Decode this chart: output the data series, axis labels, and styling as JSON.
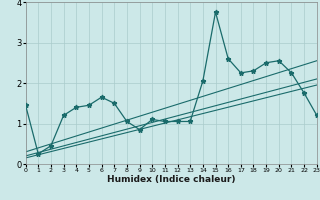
{
  "xlabel": "Humidex (Indice chaleur)",
  "background_color": "#cce8e8",
  "grid_color": "#aacccc",
  "line_color": "#1a6b6b",
  "x_data": [
    0,
    1,
    2,
    3,
    4,
    5,
    6,
    7,
    8,
    9,
    10,
    11,
    12,
    13,
    14,
    15,
    16,
    17,
    18,
    19,
    20,
    21,
    22,
    23
  ],
  "y_main": [
    1.45,
    0.25,
    0.45,
    1.2,
    1.4,
    1.45,
    1.65,
    1.5,
    1.05,
    0.85,
    1.1,
    1.05,
    1.05,
    1.05,
    2.05,
    3.75,
    2.6,
    2.25,
    2.3,
    2.5,
    2.55,
    2.25,
    1.75,
    1.2
  ],
  "ylim": [
    0,
    4.0
  ],
  "xlim": [
    0,
    23
  ],
  "yticks": [
    0,
    1,
    2,
    3,
    4
  ],
  "xticks": [
    0,
    1,
    2,
    3,
    4,
    5,
    6,
    7,
    8,
    9,
    10,
    11,
    12,
    13,
    14,
    15,
    16,
    17,
    18,
    19,
    20,
    21,
    22,
    23
  ],
  "trend1_x": [
    0,
    23
  ],
  "trend1_y": [
    0.3,
    2.55
  ],
  "trend2_x": [
    0,
    23
  ],
  "trend2_y": [
    0.2,
    2.1
  ],
  "trend3_x": [
    0,
    23
  ],
  "trend3_y": [
    0.15,
    1.95
  ]
}
